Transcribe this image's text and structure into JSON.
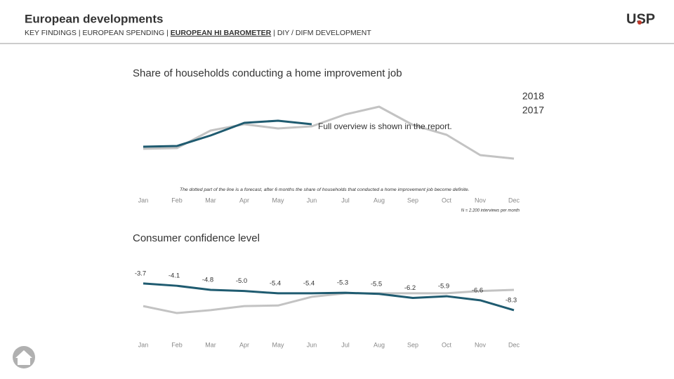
{
  "header": {
    "title": "European developments",
    "nav": [
      "KEY FINDINGS",
      "EUROPEAN SPENDING",
      "EUROPEAN HI BAROMETER",
      "DIY / DIFM DEVELOPMENT"
    ],
    "logo": "USP"
  },
  "chart_data": [
    {
      "type": "line",
      "title": "Share of households conducting a home improvement job",
      "categories": [
        "Jan",
        "Feb",
        "Mar",
        "Apr",
        "May",
        "Jun",
        "Jul",
        "Aug",
        "Sep",
        "Oct",
        "Nov",
        "Dec"
      ],
      "series": [
        {
          "name": "2018",
          "color": "#1f5b70",
          "values": [
            31,
            32,
            47,
            65,
            68,
            63,
            null,
            null,
            null,
            null,
            null,
            null
          ]
        },
        {
          "name": "2017",
          "color": "#c3c3c3",
          "values": [
            28,
            29,
            54,
            63,
            57,
            60,
            77,
            88,
            62,
            48,
            19,
            14
          ]
        }
      ],
      "ylim": [
        0,
        100
      ],
      "legend": "top-right",
      "annotation": "Full overview is shown in the report.",
      "footnote": "The dotted part of the line is a forecast, after 6 months the share of households that conducted a home improvement job become definite.",
      "note": "N = 2.200 interviews per month"
    },
    {
      "type": "line",
      "title": "Consumer confidence level",
      "categories": [
        "Jan",
        "Feb",
        "Mar",
        "Apr",
        "May",
        "Jun",
        "Jul",
        "Aug",
        "Sep",
        "Oct",
        "Nov",
        "Dec"
      ],
      "series": [
        {
          "color": "#1f5b70",
          "values": [
            -3.7,
            -4.1,
            -4.8,
            -5.0,
            -5.4,
            -5.4,
            -5.3,
            -5.5,
            -6.2,
            -5.9,
            -6.6,
            -8.3
          ],
          "value_labels": [
            "-3.7",
            "-4.1",
            "-4.8",
            "-5.0",
            "-5.4",
            "-5.4",
            "-5.3",
            "-5.5",
            "-6.2",
            "-5.9",
            "-6.6",
            "-8.3"
          ]
        },
        {
          "color": "#c3c3c3",
          "values": [
            -7.6,
            -8.8,
            -8.3,
            -7.6,
            -7.5,
            -6.0,
            -5.4,
            -5.4,
            -5.4,
            -5.4,
            -5.0,
            -4.8
          ]
        }
      ],
      "ylim": [
        -11.7,
        0.4
      ]
    }
  ]
}
